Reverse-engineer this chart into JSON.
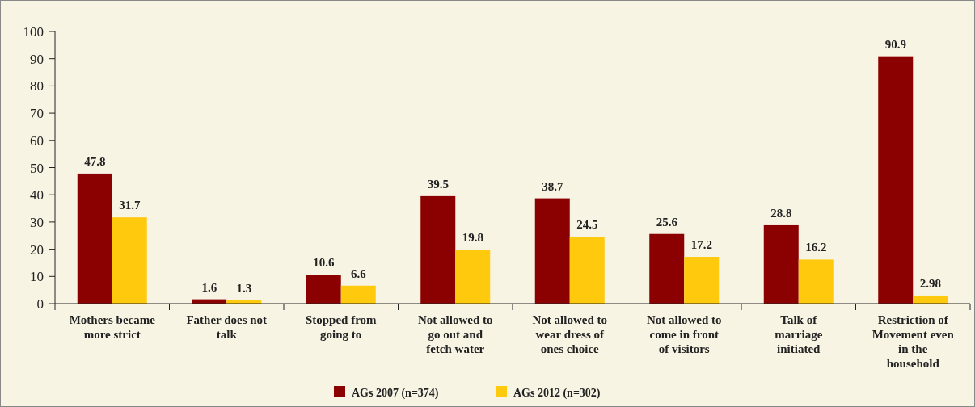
{
  "chart_data": {
    "type": "bar",
    "categories": [
      "Mothers became more strict",
      "Father does not talk",
      "Stopped from going to",
      "Not allowed to go out and fetch water",
      "Not allowed to wear dress of ones choice",
      "Not allowed to come in front of visitors",
      "Talk of marriage initiated",
      "Restriction of Movement even in the household"
    ],
    "series": [
      {
        "name": "AGs 2007 (n=374)",
        "color": "#8b0000",
        "values": [
          47.8,
          1.6,
          10.6,
          39.5,
          38.7,
          25.6,
          28.8,
          90.9
        ]
      },
      {
        "name": "AGs 2012 (n=302)",
        "color": "#ffc90e",
        "values": [
          31.7,
          1.3,
          6.6,
          19.8,
          24.5,
          17.2,
          16.2,
          2.98
        ]
      }
    ],
    "ylim": [
      0,
      100
    ],
    "yticks": [
      0,
      10,
      20,
      30,
      40,
      50,
      60,
      70,
      80,
      90,
      100
    ],
    "data_labels": true,
    "legend": "bottom",
    "grid": false
  }
}
